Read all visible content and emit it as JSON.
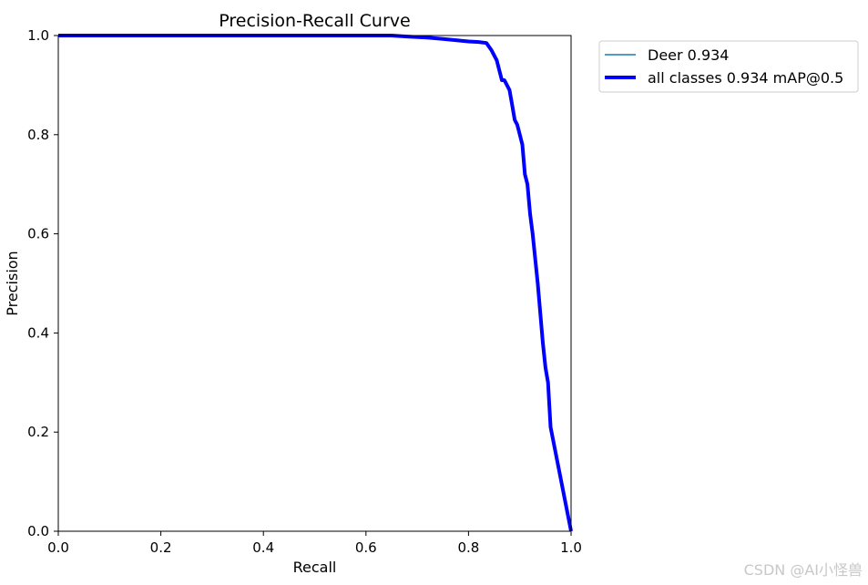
{
  "chart_data": {
    "type": "line",
    "title": "Precision-Recall Curve",
    "xlabel": "Recall",
    "ylabel": "Precision",
    "xlim": [
      0,
      1
    ],
    "ylim": [
      0,
      1
    ],
    "xticks": [
      0,
      0.2,
      0.4,
      0.6,
      0.8,
      1.0
    ],
    "yticks": [
      0,
      0.2,
      0.4,
      0.6,
      0.8,
      1.0
    ],
    "xtick_labels": [
      "0.0",
      "0.2",
      "0.4",
      "0.6",
      "0.8",
      "1.0"
    ],
    "ytick_labels": [
      "0.0",
      "0.2",
      "0.4",
      "0.6",
      "0.8",
      "1.0"
    ],
    "grid": false,
    "legend_position": "outside-top-right",
    "series": [
      {
        "name": "Deer 0.934",
        "color": "#1f77b4",
        "x": [
          0,
          0.65,
          0.68,
          0.72,
          0.75,
          0.78,
          0.8,
          0.82,
          0.835,
          0.845,
          0.855,
          0.86,
          0.865,
          0.87,
          0.875,
          0.88,
          0.885,
          0.89,
          0.895,
          0.9,
          0.905,
          0.91,
          0.915,
          0.92,
          0.925,
          0.93,
          0.935,
          0.94,
          0.945,
          0.95,
          0.955,
          0.96,
          1.0
        ],
        "y": [
          1.0,
          1.0,
          0.998,
          0.996,
          0.993,
          0.99,
          0.988,
          0.987,
          0.985,
          0.97,
          0.95,
          0.93,
          0.91,
          0.91,
          0.9,
          0.89,
          0.86,
          0.83,
          0.82,
          0.8,
          0.78,
          0.72,
          0.7,
          0.64,
          0.6,
          0.55,
          0.5,
          0.44,
          0.38,
          0.33,
          0.3,
          0.21,
          0.0
        ]
      },
      {
        "name": "all classes 0.934 mAP@0.5",
        "color": "#0000ff",
        "x": [
          0,
          0.65,
          0.68,
          0.72,
          0.75,
          0.78,
          0.8,
          0.82,
          0.835,
          0.845,
          0.855,
          0.86,
          0.865,
          0.87,
          0.875,
          0.88,
          0.885,
          0.89,
          0.895,
          0.9,
          0.905,
          0.91,
          0.915,
          0.92,
          0.925,
          0.93,
          0.935,
          0.94,
          0.945,
          0.95,
          0.955,
          0.96,
          1.0
        ],
        "y": [
          1.0,
          1.0,
          0.998,
          0.996,
          0.993,
          0.99,
          0.988,
          0.987,
          0.985,
          0.97,
          0.95,
          0.93,
          0.91,
          0.91,
          0.9,
          0.89,
          0.86,
          0.83,
          0.82,
          0.8,
          0.78,
          0.72,
          0.7,
          0.64,
          0.6,
          0.55,
          0.5,
          0.44,
          0.38,
          0.33,
          0.3,
          0.21,
          0.0
        ]
      }
    ]
  },
  "watermark": "CSDN @AI小怪兽"
}
